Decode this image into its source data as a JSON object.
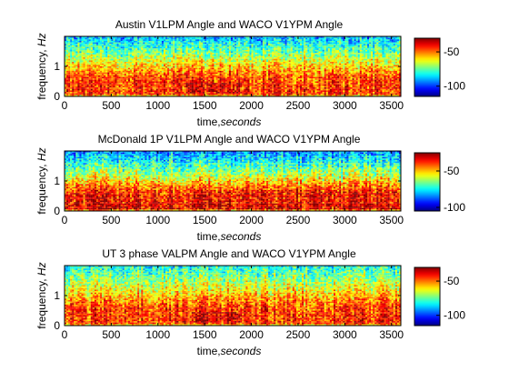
{
  "figure": {
    "background": "#ffffff",
    "colormap": "jet"
  },
  "chart_data": [
    {
      "type": "heatmap",
      "title": "Austin V1LPM Angle and WACO V1YPM Angle",
      "xlabel_prefix": "time,",
      "xlabel_unit": "seconds",
      "ylabel_prefix": "frequency, ",
      "ylabel_unit": "Hz",
      "xlim": [
        0,
        3600
      ],
      "ylim": [
        0,
        2
      ],
      "xticks": [
        0,
        500,
        1000,
        1500,
        2000,
        2500,
        3000,
        3500
      ],
      "yticks": [
        0,
        1
      ],
      "colorbar": {
        "ticks": [
          -50,
          -100
        ],
        "range": [
          -115,
          -30
        ]
      },
      "levels": {
        "low_freq_band_db": -45,
        "mid_db": -65,
        "high_freq_db": -90
      },
      "hot_regions": [
        {
          "t_start": 1300,
          "t_end": 1900,
          "f_start": 0.1,
          "f_end": 0.45,
          "db": -35
        },
        {
          "t_start": 2400,
          "t_end": 2700,
          "f_start": 0.4,
          "f_end": 1.1,
          "db": -55
        }
      ]
    },
    {
      "type": "heatmap",
      "title": "McDonald 1P V1LPM Angle and WACO V1YPM Angle",
      "xlabel_prefix": "time,",
      "xlabel_unit": "seconds",
      "ylabel_prefix": "frequency, ",
      "ylabel_unit": "Hz",
      "xlim": [
        0,
        3600
      ],
      "ylim": [
        0,
        2
      ],
      "xticks": [
        0,
        500,
        1000,
        1500,
        2000,
        2500,
        3000,
        3500
      ],
      "yticks": [
        0,
        1
      ],
      "colorbar": {
        "ticks": [
          -50,
          -100
        ],
        "range": [
          -105,
          -25
        ]
      },
      "levels": {
        "low_freq_band_db": -35,
        "mid_db": -60,
        "high_freq_db": -85
      },
      "hot_regions": [
        {
          "t_start": 0,
          "t_end": 3600,
          "f_start": 0.05,
          "f_end": 0.25,
          "db": -30
        }
      ]
    },
    {
      "type": "heatmap",
      "title": "UT 3 phase VALPM Angle and WACO V1YPM Angle",
      "xlabel_prefix": "time,",
      "xlabel_unit": "seconds",
      "ylabel_prefix": "frequency, ",
      "ylabel_unit": "Hz",
      "xlim": [
        0,
        3600
      ],
      "ylim": [
        0,
        2
      ],
      "xticks": [
        0,
        500,
        1000,
        1500,
        2000,
        2500,
        3000,
        3500
      ],
      "yticks": [
        0,
        1
      ],
      "colorbar": {
        "ticks": [
          -50,
          -100
        ],
        "range": [
          -115,
          -30
        ]
      },
      "levels": {
        "low_freq_band_db": -45,
        "mid_db": -62,
        "high_freq_db": -82
      },
      "hot_regions": [
        {
          "t_start": 1300,
          "t_end": 1900,
          "f_start": 0.1,
          "f_end": 0.45,
          "db": -35
        },
        {
          "t_start": 2400,
          "t_end": 2700,
          "f_start": 0.4,
          "f_end": 1.1,
          "db": -52
        }
      ]
    }
  ]
}
